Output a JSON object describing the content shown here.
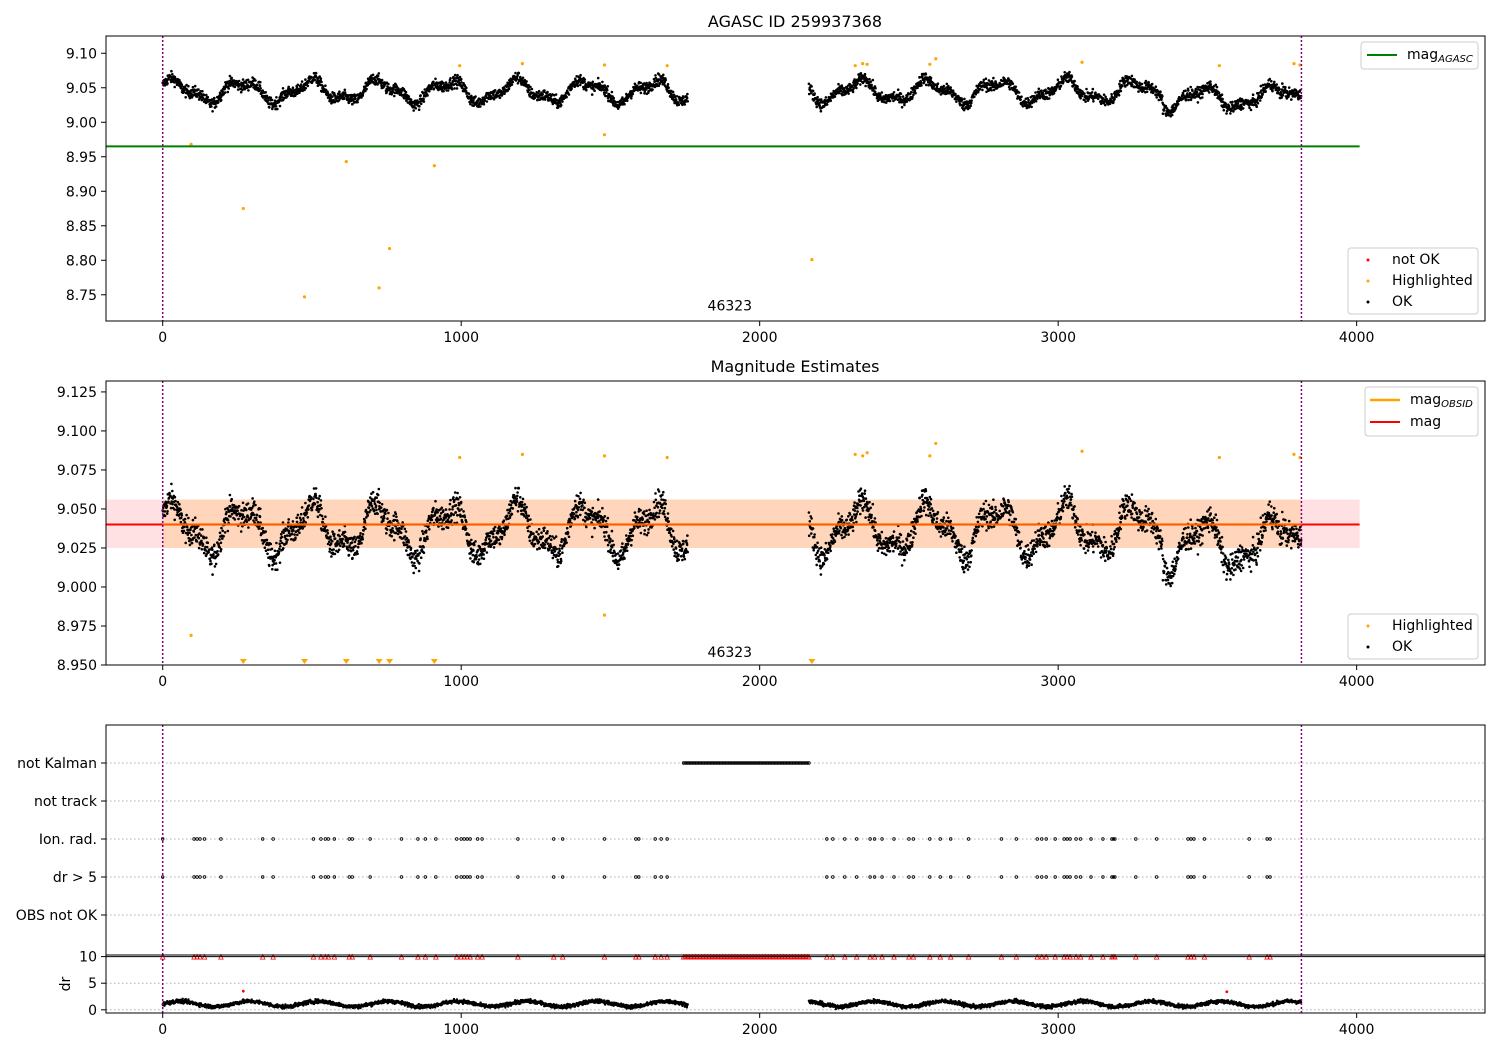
{
  "chart_data": [
    {
      "type": "scatter",
      "title": "AGASC ID 259937368",
      "xlim": [
        -190,
        4430
      ],
      "ylim": [
        8.712,
        9.125
      ],
      "xticks": [
        0,
        1000,
        2000,
        3000,
        4000
      ],
      "yticks": [
        8.75,
        8.8,
        8.85,
        8.9,
        8.95,
        9.0,
        9.05,
        9.1
      ],
      "ytick_labels": [
        "8.75",
        "8.80",
        "8.85",
        "8.90",
        "8.95",
        "9.00",
        "9.05",
        "9.10"
      ],
      "mag_agasc": 8.965,
      "mag_agasc_xrange": [
        -190,
        4010
      ],
      "vlines": [
        0,
        3815
      ],
      "obsid_label": {
        "text": "46323",
        "x": 1900,
        "y": 8.727
      },
      "highlighted_points": [
        [
          95,
          8.968
        ],
        [
          270,
          8.875
        ],
        [
          475,
          8.747
        ],
        [
          615,
          8.943
        ],
        [
          725,
          8.76
        ],
        [
          760,
          8.817
        ],
        [
          910,
          8.937
        ],
        [
          995,
          9.082
        ],
        [
          1205,
          9.085
        ],
        [
          1480,
          8.982
        ],
        [
          1480,
          9.083
        ],
        [
          1690,
          9.082
        ],
        [
          2175,
          8.801
        ],
        [
          2320,
          9.082
        ],
        [
          2345,
          9.085
        ],
        [
          2360,
          9.084
        ],
        [
          2570,
          9.084
        ],
        [
          2590,
          9.092
        ],
        [
          3080,
          9.087
        ],
        [
          3540,
          9.082
        ],
        [
          3790,
          9.085
        ],
        [
          3810,
          9.083
        ]
      ],
      "legend_line": [
        {
          "label": "mag",
          "sub": "AGASC",
          "color": "#008000"
        }
      ],
      "legend_points": [
        {
          "label": "not OK",
          "color": "#ff0000"
        },
        {
          "label": "Highlighted",
          "color": "#ffa500"
        },
        {
          "label": "OK",
          "color": "#000000"
        }
      ]
    },
    {
      "type": "scatter",
      "title": "Magnitude Estimates",
      "xlim": [
        -190,
        4430
      ],
      "ylim": [
        8.95,
        9.132
      ],
      "xticks": [
        0,
        1000,
        2000,
        3000,
        4000
      ],
      "yticks": [
        8.95,
        8.975,
        9.0,
        9.025,
        9.05,
        9.075,
        9.1,
        9.125
      ],
      "ytick_labels": [
        "8.950",
        "8.975",
        "9.000",
        "9.025",
        "9.050",
        "9.075",
        "9.100",
        "9.125"
      ],
      "mag": 9.04,
      "band": [
        9.025,
        9.056
      ],
      "band_xrange": [
        -190,
        4010
      ],
      "vlines": [
        0,
        3815
      ],
      "obsid_label": {
        "text": "46323",
        "x": 1900,
        "y": 8.955
      },
      "highlighted_points": [
        [
          95,
          8.969
        ],
        [
          995,
          9.083
        ],
        [
          1205,
          9.085
        ],
        [
          1480,
          9.084
        ],
        [
          1480,
          8.982
        ],
        [
          1690,
          9.083
        ],
        [
          2320,
          9.085
        ],
        [
          2345,
          9.084
        ],
        [
          2360,
          9.086
        ],
        [
          2570,
          9.084
        ],
        [
          2590,
          9.092
        ],
        [
          3080,
          9.087
        ],
        [
          3540,
          9.083
        ],
        [
          3790,
          9.085
        ],
        [
          3810,
          9.083
        ]
      ],
      "below_range_markers": [
        270,
        475,
        615,
        725,
        760,
        910,
        2175
      ],
      "legend_line": [
        {
          "label": "mag",
          "sub": "OBSID",
          "color": "#ffa500"
        },
        {
          "label": "mag",
          "sub": "",
          "color": "#ff0000"
        }
      ],
      "legend_points": [
        {
          "label": "Highlighted",
          "color": "#ffa500"
        },
        {
          "label": "OK",
          "color": "#000000"
        }
      ]
    },
    {
      "type": "scatter",
      "title": "",
      "xlim": [
        -190,
        4430
      ],
      "categories": [
        "not Kalman",
        "not track",
        "Ion. rad.",
        "dr > 5",
        "OBS not OK"
      ],
      "vlines": [
        0,
        3815
      ],
      "not_kalman_range": [
        1745,
        2165
      ],
      "flag_x": [
        0,
        105,
        115,
        125,
        140,
        195,
        335,
        370,
        505,
        530,
        545,
        555,
        575,
        625,
        635,
        695,
        800,
        855,
        880,
        915,
        985,
        1000,
        1010,
        1020,
        1030,
        1055,
        1070,
        1190,
        1310,
        1340,
        1480,
        1585,
        1595,
        1650,
        1670,
        1690,
        2225,
        2245,
        2285,
        2325,
        2370,
        2385,
        2410,
        2450,
        2500,
        2515,
        2570,
        2605,
        2640,
        2700,
        2810,
        2860,
        2930,
        2945,
        2960,
        2990,
        3020,
        3030,
        3040,
        3060,
        3075,
        3110,
        3150,
        3180,
        3185,
        3190,
        3260,
        3330,
        3435,
        3445,
        3455,
        3490,
        3640,
        3700,
        3710
      ]
    },
    {
      "type": "scatter",
      "title": "",
      "xlim": [
        -190,
        4430
      ],
      "ylim": [
        -0.6,
        10.3
      ],
      "yticks": [
        0,
        5,
        10
      ],
      "ytick_labels": [
        "0",
        "5",
        "10"
      ],
      "ylabel": "dr",
      "xticks": [
        0,
        1000,
        2000,
        3000,
        4000
      ],
      "hline": 10,
      "vlines": [
        0,
        3815
      ],
      "not_kalman_range": [
        1745,
        2165
      ],
      "red_outliers": [
        [
          270,
          3.5
        ],
        [
          3565,
          3.4
        ]
      ]
    }
  ]
}
